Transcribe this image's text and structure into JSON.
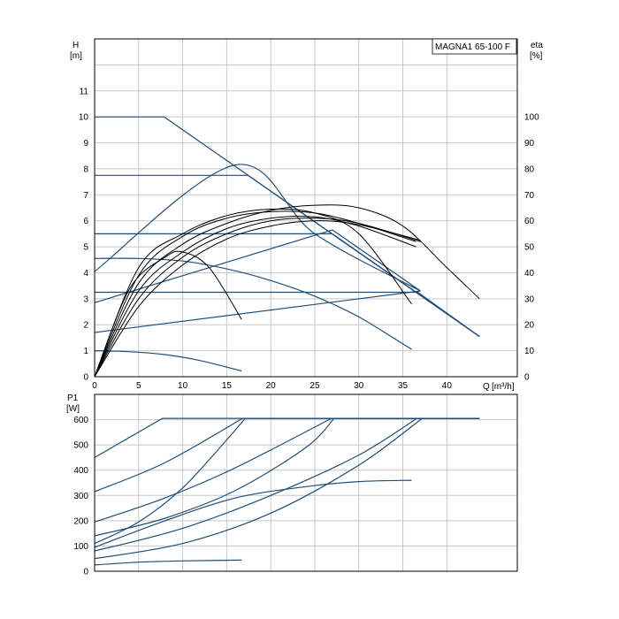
{
  "chart_data": [
    {
      "type": "line",
      "title": "MAGNA1 65-100 F",
      "ylabel": "H",
      "yunit": "[m]",
      "y2label": "eta",
      "y2unit": "[%]",
      "xlabel": "Q",
      "xunit": "[m³/h]",
      "xlim": [
        0,
        48
      ],
      "ylim": [
        0,
        13
      ],
      "y2lim": [
        0,
        130
      ],
      "xticks": [
        "0",
        "5",
        "10",
        "15",
        "20",
        "25",
        "30",
        "35",
        "40"
      ],
      "yticks": [
        "0",
        "1",
        "2",
        "3",
        "4",
        "5",
        "6",
        "7",
        "8",
        "9",
        "10",
        "11"
      ],
      "y2ticks": [
        "0",
        "10",
        "20",
        "30",
        "40",
        "50",
        "60",
        "70",
        "80",
        "90",
        "100"
      ],
      "grid": true,
      "head_series": [
        {
          "x": [
            0,
            7.9,
            43.7
          ],
          "y": [
            10.0,
            10.0,
            1.55
          ]
        },
        {
          "x": [
            0,
            17.4,
            43.7
          ],
          "y": [
            7.75,
            7.75,
            1.55
          ]
        },
        {
          "x": [
            0,
            27.0,
            43.7
          ],
          "y": [
            5.5,
            5.5,
            1.55
          ]
        },
        {
          "x": [
            0,
            36.7,
            43.7
          ],
          "y": [
            3.25,
            3.25,
            1.55
          ]
        },
        {
          "x": [
            0,
            5,
            10,
            15,
            20,
            25,
            30,
            36.0
          ],
          "y": [
            4.55,
            4.55,
            4.45,
            4.15,
            3.7,
            3.1,
            2.3,
            1.05
          ]
        },
        {
          "x": [
            0,
            4,
            8,
            12,
            16.7
          ],
          "y": [
            1.0,
            0.96,
            0.85,
            0.62,
            0.22
          ]
        },
        {
          "x": [
            0,
            16,
            25,
            37
          ],
          "y": [
            4.05,
            8.15,
            5.5,
            3.3
          ]
        },
        {
          "x": [
            0,
            27,
            37
          ],
          "y": [
            2.85,
            5.65,
            3.3
          ]
        },
        {
          "x": [
            0,
            37
          ],
          "y": [
            1.7,
            3.3
          ]
        }
      ],
      "efficiency_series": [
        {
          "x": [
            0,
            5,
            10,
            15,
            20,
            25,
            30,
            35,
            40,
            43.7
          ],
          "y": [
            0,
            36,
            51,
            59,
            64,
            66,
            65,
            58,
            42,
            30
          ]
        },
        {
          "x": [
            0,
            5,
            10,
            15,
            20,
            25,
            30,
            36.5
          ],
          "y": [
            0,
            39,
            54,
            61,
            63.5,
            63,
            59,
            52
          ]
        },
        {
          "x": [
            0,
            5,
            10,
            15,
            20,
            25,
            30,
            36
          ],
          "y": [
            0,
            42,
            55,
            62,
            64.5,
            63,
            55,
            28
          ]
        },
        {
          "x": [
            0,
            5,
            10,
            15,
            20,
            25,
            30,
            37
          ],
          "y": [
            0,
            30,
            46,
            55,
            60,
            61,
            59,
            52
          ]
        },
        {
          "x": [
            0,
            5,
            10,
            15,
            20,
            25,
            30,
            37
          ],
          "y": [
            0,
            27,
            43,
            53,
            58,
            60,
            58.5,
            52.5
          ]
        },
        {
          "x": [
            0,
            4,
            8,
            10,
            13,
            16.7
          ],
          "y": [
            0,
            34,
            46,
            48,
            42,
            22
          ]
        },
        {
          "x": [
            0,
            5,
            10,
            15,
            20,
            25,
            30,
            36.5
          ],
          "y": [
            0,
            33,
            48,
            57,
            61,
            61.5,
            58,
            50
          ]
        }
      ]
    },
    {
      "type": "line",
      "ylabel": "P1",
      "yunit": "[W]",
      "xlim": [
        0,
        48
      ],
      "ylim": [
        0,
        700
      ],
      "yticks": [
        "0",
        "100",
        "200",
        "300",
        "400",
        "500",
        "600"
      ],
      "grid": true,
      "power_series": [
        {
          "x": [
            0,
            7.7,
            43.7
          ],
          "y": [
            450,
            605,
            605
          ]
        },
        {
          "x": [
            0,
            8,
            16.8,
            43.7
          ],
          "y": [
            315,
            430,
            605,
            605
          ]
        },
        {
          "x": [
            0,
            8,
            16,
            26.9,
            43.7
          ],
          "y": [
            195,
            290,
            410,
            605,
            605
          ]
        },
        {
          "x": [
            0,
            8,
            16,
            24,
            27.2,
            43.7
          ],
          "y": [
            140,
            210,
            320,
            490,
            605,
            605
          ]
        },
        {
          "x": [
            0,
            5,
            10,
            15,
            17.1,
            43.7
          ],
          "y": [
            110,
            195,
            330,
            520,
            605,
            605
          ]
        },
        {
          "x": [
            0,
            10,
            20,
            30,
            36.6,
            43.7
          ],
          "y": [
            80,
            170,
            300,
            460,
            605,
            605
          ]
        },
        {
          "x": [
            0,
            10,
            20,
            30,
            37.2,
            43.7
          ],
          "y": [
            50,
            110,
            230,
            420,
            605,
            605
          ]
        },
        {
          "x": [
            0,
            8,
            16,
            24,
            30,
            36
          ],
          "y": [
            95,
            200,
            290,
            335,
            355,
            360
          ]
        },
        {
          "x": [
            0,
            5,
            10,
            16.7
          ],
          "y": [
            25,
            36,
            41,
            44
          ]
        }
      ]
    }
  ]
}
